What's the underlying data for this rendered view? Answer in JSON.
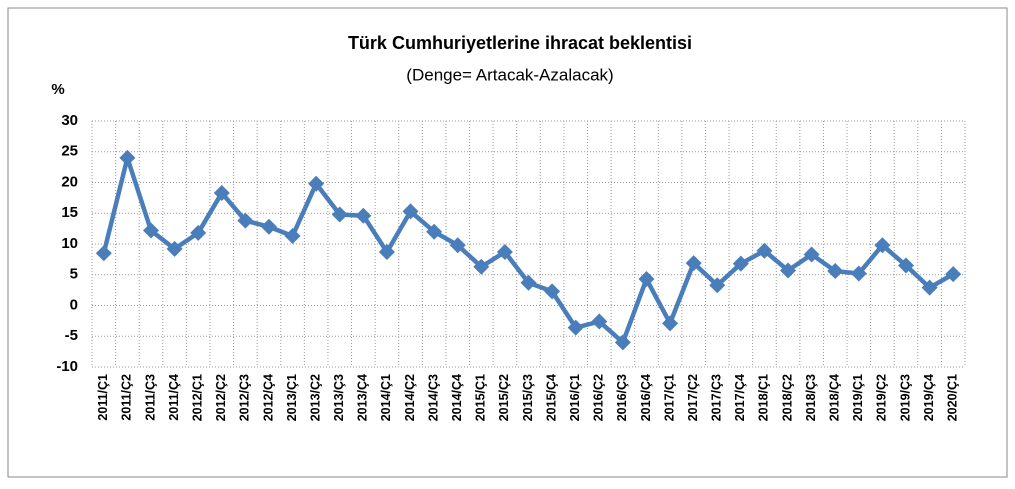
{
  "chart_data": {
    "type": "line",
    "title": "Türk Cumhuriyetlerine  ihracat beklentisi",
    "subtitle": "(Denge= Artacak-Azalacak)",
    "y_label": "%",
    "categories": [
      "2011/Ç1",
      "2011/Ç2",
      "2011/Ç3",
      "2011/Ç4",
      "2012/Ç1",
      "2012/Ç2",
      "2012/Ç3",
      "2012/Ç4",
      "2013/Ç1",
      "2013/Ç2",
      "2013/Ç3",
      "2013/Ç4",
      "2014/Ç1",
      "2014/Ç2",
      "2014/Ç3",
      "2014/Ç4",
      "2015/Ç1",
      "2015/Ç2",
      "2015/Ç3",
      "2015/Ç4",
      "2016/Ç1",
      "2016/Ç2",
      "2016/Ç3",
      "2016/Ç4",
      "2017/Ç1",
      "2017/Ç2",
      "2017/Ç3",
      "2017/Ç4",
      "2018/Ç1",
      "2018/Ç2",
      "2018/Ç3",
      "2018/Ç4",
      "2019/Ç1",
      "2019/Ç2",
      "2019/Ç3",
      "2019/Ç4",
      "2020/Ç1"
    ],
    "values": [
      8.5,
      24,
      12.2,
      9.2,
      11.8,
      18.3,
      13.8,
      12.8,
      11.3,
      19.8,
      14.8,
      14.6,
      8.7,
      15.3,
      12,
      9.8,
      6.3,
      8.7,
      3.7,
      2.3,
      -3.6,
      -2.6,
      -6,
      4.3,
      -2.9,
      6.9,
      3.3,
      6.8,
      8.9,
      5.7,
      8.3,
      5.6,
      5.2,
      9.8,
      6.5,
      2.9,
      5.1
    ],
    "color": "#4a7ebb",
    "ylim": [
      -10,
      30
    ],
    "yticks": [
      -10,
      -5,
      0,
      5,
      10,
      15,
      20,
      25,
      30
    ],
    "grid": true
  }
}
